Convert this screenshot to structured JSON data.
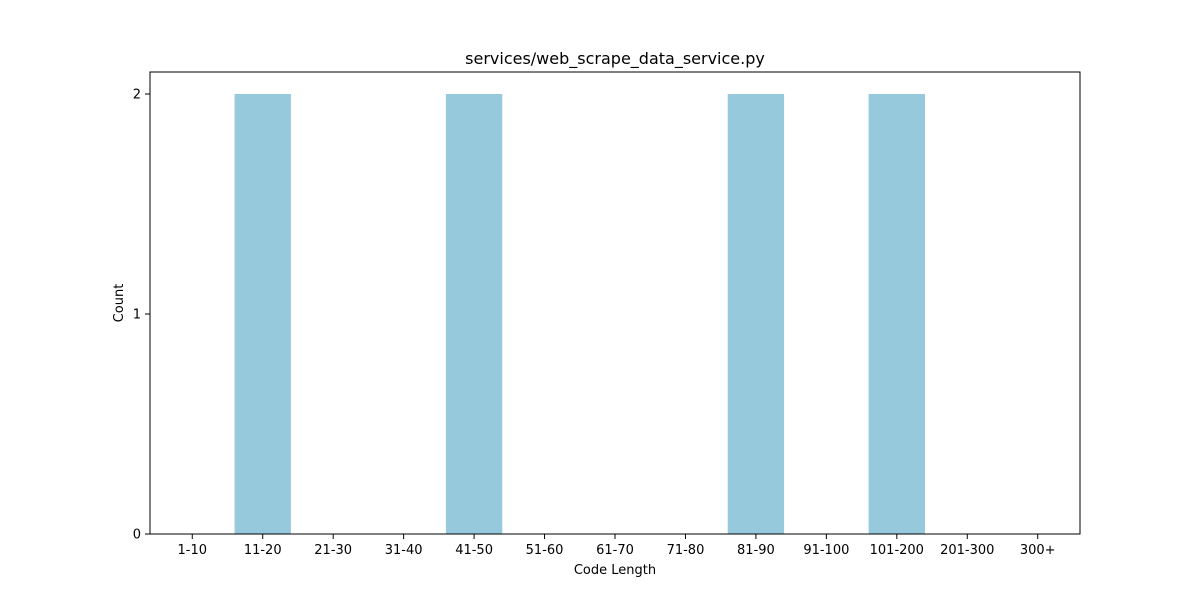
{
  "chart_data": {
    "type": "bar",
    "title": "services/web_scrape_data_service.py",
    "xlabel": "Code Length",
    "ylabel": "Count",
    "categories": [
      "1-10",
      "11-20",
      "21-30",
      "31-40",
      "41-50",
      "51-60",
      "61-70",
      "71-80",
      "81-90",
      "91-100",
      "101-200",
      "201-300",
      "300+"
    ],
    "values": [
      0,
      2,
      0,
      0,
      2,
      0,
      0,
      0,
      2,
      0,
      2,
      0,
      0
    ],
    "ylim": [
      0,
      2.1
    ],
    "yticks": [
      0,
      1,
      2
    ],
    "grid": false,
    "bar_color": "#96c9dc"
  }
}
